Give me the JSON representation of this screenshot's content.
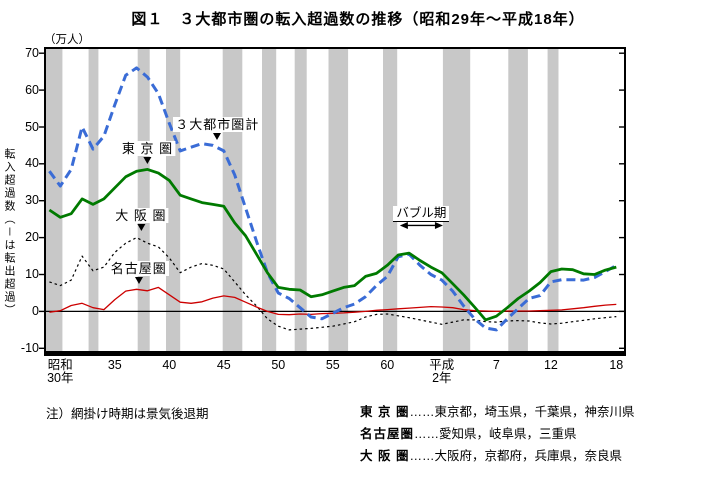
{
  "title": "図１　３大都市圏の転入超過数の推移（昭和29年～平成18年）",
  "note": "注）網掛け時期は景気後退期",
  "axis": {
    "unit_label": "（万人）",
    "y_label_vertical": "転入超過数（－は転出超過）"
  },
  "legend": {
    "rows": [
      {
        "name": "東 京 圏",
        "leader": "……",
        "areas": "東京都，埼玉県，千葉県，神奈川県"
      },
      {
        "name": "名古屋圏",
        "leader": "……",
        "areas": "愛知県，岐阜県，三重県"
      },
      {
        "name": "大 阪 圏",
        "leader": "……",
        "areas": "大阪府，京都府，兵庫県，奈良県"
      }
    ]
  },
  "colors": {
    "total": "#3A6CD6",
    "tokyo": "#007A00",
    "osaka": "#000000",
    "nagoya": "#CC0000",
    "recession_band": "#C8C8C8",
    "axis_line": "#000000"
  },
  "chart_data": {
    "type": "line",
    "title": "３大都市圏の転入超過数の推移（昭和29年～平成18年）",
    "xlabel": "",
    "ylabel": "転入超過数（万人）（－は転出超過）",
    "grid": false,
    "xlim": [
      1953.6,
      2006.8
    ],
    "ylim": [
      -11,
      71.4
    ],
    "y_ticks": [
      70,
      60,
      50,
      40,
      30,
      20,
      10,
      0,
      -10
    ],
    "x_ticks": [
      {
        "x": 1955,
        "label": "昭和\n30年"
      },
      {
        "x": 1960,
        "label": "35"
      },
      {
        "x": 1965,
        "label": "40"
      },
      {
        "x": 1970,
        "label": "45"
      },
      {
        "x": 1975,
        "label": "50"
      },
      {
        "x": 1980,
        "label": "55"
      },
      {
        "x": 1985,
        "label": "60"
      },
      {
        "x": 1990,
        "label": "平成\n2年"
      },
      {
        "x": 1995,
        "label": "7"
      },
      {
        "x": 2000,
        "label": "12"
      },
      {
        "x": 2006,
        "label": "18"
      }
    ],
    "x": [
      1954,
      1955,
      1956,
      1957,
      1958,
      1959,
      1960,
      1961,
      1962,
      1963,
      1964,
      1965,
      1966,
      1967,
      1968,
      1969,
      1970,
      1971,
      1972,
      1973,
      1974,
      1975,
      1976,
      1977,
      1978,
      1979,
      1980,
      1981,
      1982,
      1983,
      1984,
      1985,
      1986,
      1987,
      1988,
      1989,
      1990,
      1991,
      1992,
      1993,
      1994,
      1995,
      1996,
      1997,
      1998,
      1999,
      2000,
      2001,
      2002,
      2003,
      2004,
      2005,
      2006
    ],
    "series": [
      {
        "key": "osaka",
        "name": "大 阪 圏",
        "color": "#000000",
        "style": "dotted",
        "values": [
          8,
          7,
          8.5,
          15,
          11,
          12,
          16,
          18.5,
          20,
          18.5,
          17.5,
          14.5,
          10.5,
          12,
          13,
          12.5,
          11.5,
          8,
          4.5,
          1.5,
          -2,
          -4,
          -5,
          -4.8,
          -4.6,
          -4.3,
          -4,
          -3.4,
          -2.8,
          -1.5,
          -0.8,
          -0.7,
          -1.2,
          -1.7,
          -2.3,
          -2.9,
          -3.5,
          -2.9,
          -2.3,
          -2.3,
          -2.8,
          -2.9,
          -2.6,
          -2.5,
          -2.6,
          -3.1,
          -3.4,
          -3.2,
          -2.8,
          -2.4,
          -2,
          -1.7,
          -1.4
        ]
      },
      {
        "key": "nagoya",
        "name": "名古屋圏",
        "color": "#CC0000",
        "style": "solid_thin",
        "values": [
          -0.2,
          0.2,
          1.6,
          2.2,
          1,
          0.5,
          3.2,
          5.5,
          6,
          5.6,
          6.5,
          4.5,
          2.5,
          2.2,
          2.6,
          3.6,
          4.2,
          3.8,
          2.5,
          1.2,
          0,
          -0.8,
          -0.9,
          -0.7,
          -0.8,
          -0.6,
          -0.5,
          -0.4,
          -0.2,
          0,
          0.3,
          0.5,
          0.7,
          0.9,
          1.1,
          1.3,
          1.2,
          1,
          0.5,
          0.2,
          0.1,
          0,
          0.1,
          0.1,
          0.1,
          0.2,
          0.3,
          0.4,
          0.7,
          1,
          1.4,
          1.7,
          1.9
        ]
      },
      {
        "key": "total",
        "name": "３大都市圏計",
        "color": "#3A6CD6",
        "style": "dashed_bold",
        "values": [
          38,
          34,
          38.5,
          50,
          44,
          47.5,
          56,
          64,
          66,
          63.5,
          59,
          51,
          43.5,
          44.5,
          45.5,
          45,
          43.5,
          37,
          28,
          19,
          10.5,
          5,
          3.5,
          1,
          -1.5,
          -2,
          -0.5,
          1,
          2,
          4,
          7,
          9.5,
          14.8,
          15.5,
          12.5,
          10,
          8.5,
          5.5,
          1.5,
          -2,
          -4.5,
          -5,
          -2,
          0.8,
          3.5,
          4.3,
          8,
          8.6,
          8.6,
          8.5,
          9.2,
          10.8,
          12.5
        ]
      },
      {
        "key": "tokyo",
        "name": "東 京 圏",
        "color": "#007A00",
        "style": "solid_bold",
        "values": [
          27.5,
          25.5,
          26.5,
          30.5,
          29,
          30.5,
          33.5,
          36.5,
          38,
          38.5,
          37.5,
          35.5,
          31.5,
          30.5,
          29.5,
          29,
          28.5,
          24,
          20.5,
          15.5,
          10.5,
          6.5,
          6,
          5.8,
          4,
          4.5,
          5.5,
          6.5,
          7,
          9.5,
          10.3,
          12.5,
          15.3,
          15.8,
          13.8,
          12,
          10.5,
          7.5,
          4.5,
          1.2,
          -2.3,
          -1.3,
          1,
          3.5,
          5.5,
          7.8,
          10.8,
          11.5,
          11.3,
          10.2,
          10,
          11.2,
          12
        ]
      }
    ],
    "recession_bands": [
      [
        1953.6,
        1955.2
      ],
      [
        1957.6,
        1958.5
      ],
      [
        1962.1,
        1963.2
      ],
      [
        1964.7,
        1966.0
      ],
      [
        1969.9,
        1971.7
      ],
      [
        1973.5,
        1974.8
      ],
      [
        1976.5,
        1977.6
      ],
      [
        1979.6,
        1981.4
      ],
      [
        1984.6,
        1985.9
      ],
      [
        1990.1,
        1992.6
      ],
      [
        1996.1,
        1997.9
      ],
      [
        1999.7,
        2000.7
      ]
    ],
    "annotations": [
      {
        "id": "total",
        "text": "３大都市圏計",
        "x": 1969.4,
        "tip_y": 46.5
      },
      {
        "id": "tokyo",
        "text": "東 京 圏",
        "x": 1963.0,
        "tip_y": 40.0
      },
      {
        "id": "osaka",
        "text": "大 阪 圏",
        "x": 1962.4,
        "tip_y": 21.8
      },
      {
        "id": "nagoya",
        "text": "名古屋圏",
        "x": 1962.2,
        "tip_y": 7.5
      }
    ],
    "range_annotation": {
      "text": "バブル期",
      "x_from": 1986.15,
      "x_to": 1990.1,
      "y": 23.3
    }
  }
}
